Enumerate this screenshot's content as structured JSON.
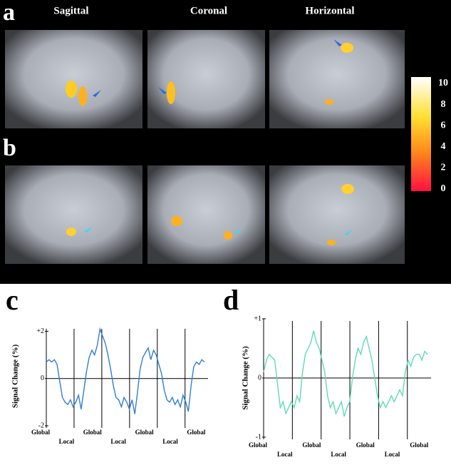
{
  "figure": {
    "panel_labels": [
      "a",
      "b"
    ],
    "column_headers": [
      "Sagittal",
      "Coronal",
      "Horizontal"
    ],
    "colorbar": {
      "lim": [
        0,
        10
      ],
      "ticks": [
        0,
        2,
        4,
        6,
        8,
        10
      ]
    }
  },
  "chart_data": [
    {
      "type": "line",
      "panel_label": "c",
      "y_label": "Signal Change (%)",
      "color": "#2f7fd6",
      "ylim": [
        -2,
        2.2
      ],
      "yticks": [
        {
          "value": 2,
          "label": "+2"
        },
        0,
        {
          "value": -2,
          "label": "-2"
        }
      ],
      "block_labels": [
        "Global",
        "Local",
        "Global",
        "Local",
        "Global",
        "Local",
        "Global"
      ],
      "values": [
        0.7,
        0.8,
        0.7,
        0.8,
        0.6,
        -0.1,
        -0.8,
        -1.0,
        -1.1,
        -0.9,
        -1.2,
        -1.0,
        -0.7,
        -1.3,
        -0.5,
        0.3,
        0.9,
        1.2,
        1.0,
        1.4,
        2.1,
        1.8,
        1.5,
        1.0,
        0.4,
        -0.3,
        -0.8,
        -0.9,
        -1.2,
        -0.8,
        -1.0,
        -1.3,
        -0.9,
        -1.5,
        -0.6,
        0.4,
        0.9,
        1.1,
        1.3,
        0.8,
        1.2,
        1.0,
        0.6,
        0.2,
        -0.5,
        -0.9,
        -1.0,
        -0.8,
        -1.1,
        -0.9,
        -1.2,
        -0.7,
        -1.0,
        -1.4,
        -0.3,
        0.5,
        0.7,
        0.6,
        0.8,
        0.7
      ]
    },
    {
      "type": "line",
      "panel_label": "d",
      "y_label": "Signal Change (%)",
      "color": "#5fdcae",
      "ylim": [
        -1,
        1
      ],
      "yticks": [
        {
          "value": 1,
          "label": "+1"
        },
        0,
        {
          "value": -1,
          "label": "-1"
        }
      ],
      "block_labels": [
        "Global",
        "Local",
        "Global",
        "Local",
        "Global",
        "Local",
        "Global"
      ],
      "values": [
        0.1,
        0.3,
        0.4,
        0.35,
        0.3,
        -0.1,
        -0.5,
        -0.4,
        -0.6,
        -0.5,
        -0.4,
        -0.5,
        -0.3,
        -0.4,
        0.1,
        0.4,
        0.5,
        0.6,
        0.8,
        0.6,
        0.5,
        0.3,
        0.1,
        -0.3,
        -0.5,
        -0.4,
        -0.6,
        -0.5,
        -0.4,
        -0.65,
        -0.5,
        -0.4,
        0.0,
        0.3,
        0.5,
        0.4,
        0.6,
        0.7,
        0.5,
        0.3,
        0.0,
        -0.3,
        -0.5,
        -0.4,
        -0.5,
        -0.4,
        -0.3,
        -0.4,
        -0.3,
        -0.2,
        -0.3,
        0.1,
        0.3,
        0.2,
        0.35,
        0.4,
        0.4,
        0.3,
        0.45,
        0.4
      ]
    }
  ]
}
